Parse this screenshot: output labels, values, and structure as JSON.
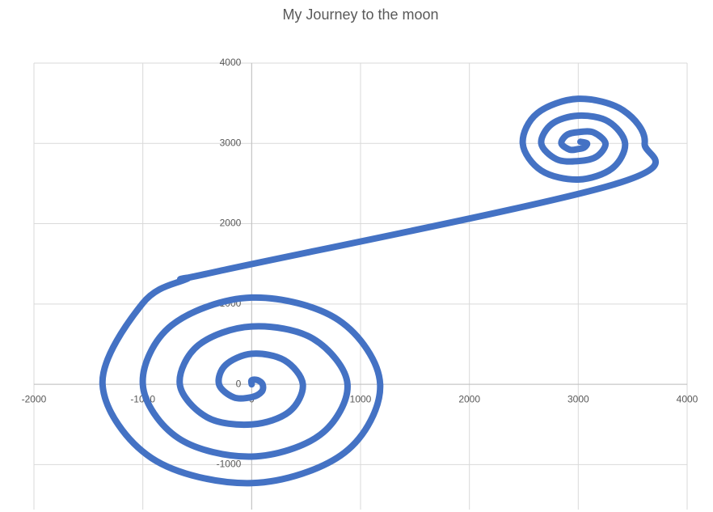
{
  "chart_data": {
    "type": "scatter",
    "title": "My Journey to the moon",
    "x": [
      0,
      0,
      53,
      100,
      92,
      0,
      -163,
      -300,
      -240,
      0,
      300,
      470,
      343,
      0,
      -410,
      -660,
      -488,
      0,
      566,
      880,
      629,
      0,
      -672,
      -1000,
      -735,
      0,
      799,
      1180,
      852,
      0,
      -919,
      -1370,
      -1004,
      -600,
      -300,
      3330,
      3610,
      3412,
      3000,
      2624,
      2490,
      2661,
      3000,
      3311,
      3430,
      3274,
      3000,
      2758,
      2660,
      2802,
      3000,
      3166,
      3250,
      3138,
      3000,
      2895,
      2845,
      2922,
      3000,
      3053,
      3080,
      3020
    ],
    "values": [
      0,
      50,
      53,
      0,
      -92,
      -160,
      -163,
      0,
      240,
      380,
      300,
      0,
      -343,
      -500,
      -410,
      0,
      488,
      720,
      566,
      0,
      -629,
      -900,
      -672,
      0,
      735,
      1080,
      799,
      0,
      -852,
      -1230,
      -919,
      0,
      1004,
      1310,
      1410,
      2490,
      3000,
      3412,
      3555,
      3376,
      3000,
      2661,
      2550,
      2689,
      3000,
      3274,
      3345,
      3242,
      3000,
      2802,
      2780,
      2834,
      3000,
      3138,
      3140,
      3105,
      3000,
      2922,
      2930,
      2947,
      3000,
      3020
    ],
    "color": "#4472c4",
    "smooth": true,
    "grid": true,
    "xlim": [
      -2000,
      4000
    ],
    "xticks": [
      -2000,
      -1000,
      0,
      1000,
      2000,
      3000,
      4000
    ],
    "ylim": [
      -1560,
      4000
    ],
    "yticks": [
      -1000,
      0,
      1000,
      2000,
      3000,
      4000
    ]
  }
}
